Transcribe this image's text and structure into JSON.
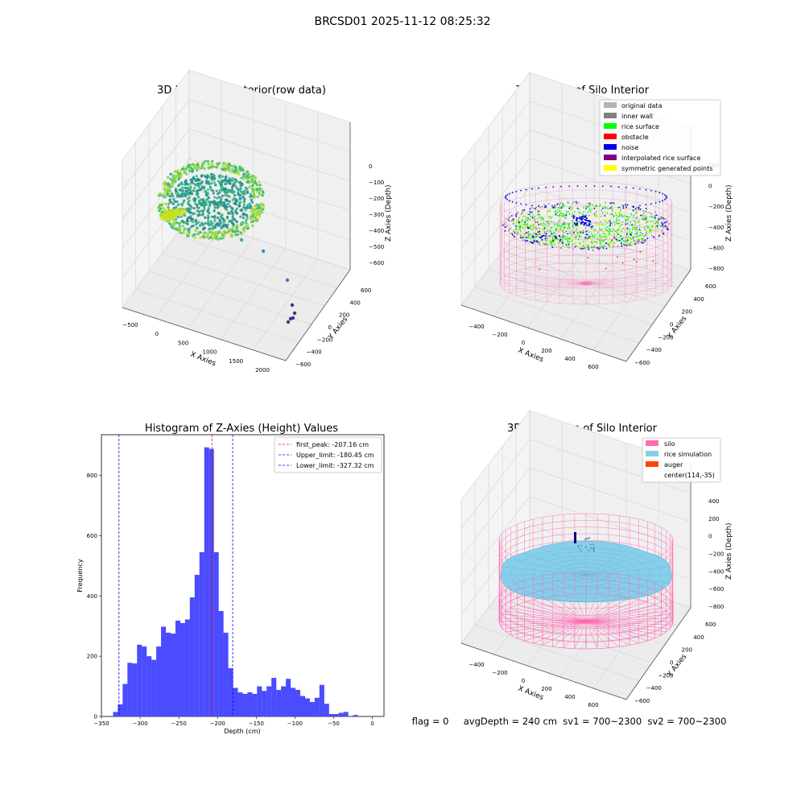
{
  "suptitle": "BRCSD01 2025-11-12 08:25:32",
  "footer": "flag = 0     avgDepth = 240 cm  sv1 = 700~2300  sv2 = 700~2300",
  "panels": {
    "raw": {
      "title": "3D Plot of Silo Interior(row data)",
      "xlabel": "X Axies",
      "ylabel": "Y Axies",
      "zlabel": "Z Axies (Depth)",
      "xticks": [
        "−500",
        "0",
        "500",
        "1000",
        "1500",
        "2000"
      ],
      "yticks": [
        "−600",
        "−400",
        "−200",
        "0",
        "200",
        "400",
        "600"
      ],
      "zticks": [
        "0",
        "−100",
        "−200",
        "−300",
        "−400",
        "−500",
        "−600"
      ]
    },
    "classify": {
      "title": "3D classify of Silo Interior",
      "xlabel": "X Axies",
      "ylabel": "Y Axies",
      "zlabel": "Z Axies (Depth)",
      "xticks": [
        "−400",
        "−200",
        "0",
        "200",
        "400",
        "600"
      ],
      "yticks": [
        "−600",
        "−400",
        "−200",
        "0",
        "200",
        "400",
        "600"
      ],
      "zticks": [
        "200",
        "0",
        "−200",
        "−400",
        "−600",
        "−800"
      ],
      "legend": [
        {
          "label": "original data",
          "color": "#b3b3b3"
        },
        {
          "label": "inner wall",
          "color": "#808080"
        },
        {
          "label": "rice surface",
          "color": "#00ff00"
        },
        {
          "label": "obstacle",
          "color": "#ff0000"
        },
        {
          "label": "noise",
          "color": "#0000ee"
        },
        {
          "label": "interpolated rice surface",
          "color": "#800080"
        },
        {
          "label": "symmetric generated points",
          "color": "#ffff00"
        }
      ]
    },
    "simulation": {
      "title": "3D simulation of Silo Interior",
      "xlabel": "X Axies",
      "ylabel": "Y Axies",
      "zlabel": "Z Axies (Depth)",
      "xticks": [
        "−400",
        "−200",
        "0",
        "200",
        "400",
        "600"
      ],
      "yticks": [
        "−600",
        "−400",
        "−200",
        "0",
        "200",
        "400",
        "600"
      ],
      "zticks": [
        "400",
        "200",
        "0",
        "−200",
        "−400",
        "−600",
        "−800"
      ],
      "legend": [
        {
          "label": "silo",
          "color": "#ff69b4"
        },
        {
          "label": "rice simulation",
          "color": "#87ceeb"
        },
        {
          "label": "auger",
          "color": "#ff4500"
        },
        {
          "label": "center(114,-35)",
          "color": ""
        }
      ]
    }
  },
  "chart_data": {
    "type": "bar",
    "title": "Histogram of Z-Axies (Height) Values",
    "xlabel": "Depth (cm)",
    "ylabel": "Frequency",
    "xlim": [
      -350,
      15
    ],
    "ylim": [
      0,
      935
    ],
    "xticks": [
      -350,
      -300,
      -250,
      -200,
      -150,
      -100,
      -50,
      0
    ],
    "yticks": [
      0,
      200,
      400,
      600,
      800
    ],
    "bar_color": "#4b4bff",
    "bin_start": -335,
    "bin_width": 6.2,
    "counts": [
      15,
      40,
      108,
      178,
      176,
      238,
      232,
      200,
      188,
      232,
      298,
      278,
      275,
      318,
      310,
      322,
      395,
      470,
      545,
      893,
      888,
      545,
      350,
      278,
      160,
      95,
      80,
      75,
      80,
      75,
      100,
      85,
      100,
      128,
      88,
      100,
      125,
      95,
      88,
      68,
      60,
      48,
      62,
      105,
      42,
      8,
      8,
      12,
      15,
      0,
      5
    ],
    "lines": [
      {
        "label": "first_peak: -207.16 cm",
        "value": -207.16,
        "color": "#ff0000"
      },
      {
        "label": "Upper_limit: -180.45 cm",
        "value": -180.45,
        "color": "#0000ff"
      },
      {
        "label": "Lower_limit: -327.32 cm",
        "value": -327.32,
        "color": "#0000ff"
      }
    ]
  }
}
